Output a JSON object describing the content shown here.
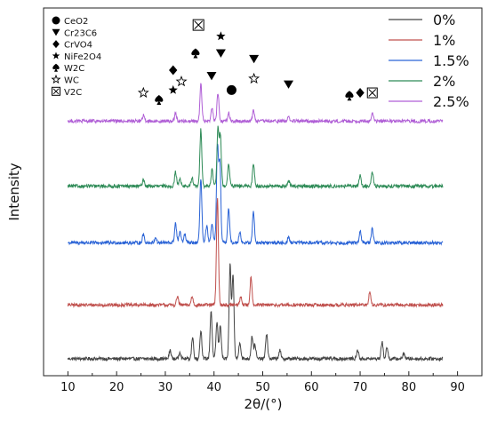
{
  "chart_data": {
    "type": "line",
    "title": "",
    "xlabel": "2θ/(°)",
    "ylabel": "Intensity",
    "xlim": [
      5,
      95
    ],
    "x_ticks": [
      10,
      20,
      30,
      40,
      50,
      60,
      70,
      80,
      90
    ],
    "grid": false,
    "legend_position": "top-right",
    "series": [
      {
        "name": "0%",
        "color": "#444444",
        "baseline": 0.06,
        "peaks": [
          [
            31,
            0.03
          ],
          [
            33,
            0.025
          ],
          [
            35.6,
            0.075
          ],
          [
            37.3,
            0.1
          ],
          [
            39.4,
            0.17
          ],
          [
            40.6,
            0.13
          ],
          [
            41.3,
            0.12
          ],
          [
            43.3,
            0.33
          ],
          [
            43.9,
            0.3
          ],
          [
            45.3,
            0.06
          ],
          [
            47.8,
            0.08
          ],
          [
            48.4,
            0.05
          ],
          [
            50.8,
            0.09
          ],
          [
            53.5,
            0.03
          ],
          [
            69.5,
            0.03
          ],
          [
            74.5,
            0.06
          ],
          [
            75.5,
            0.04
          ],
          [
            79,
            0.02
          ]
        ]
      },
      {
        "name": "1%",
        "color": "#c0504d",
        "baseline": 0.25,
        "peaks": [
          [
            32.5,
            0.03
          ],
          [
            35.5,
            0.03
          ],
          [
            40.7,
            0.38
          ],
          [
            45.5,
            0.03
          ],
          [
            47.6,
            0.1
          ],
          [
            72,
            0.05
          ]
        ]
      },
      {
        "name": "1.5%",
        "color": "#2a63d6",
        "baseline": 0.47,
        "peaks": [
          [
            25.5,
            0.03
          ],
          [
            28,
            0.02
          ],
          [
            32.1,
            0.07
          ],
          [
            33,
            0.04
          ],
          [
            34,
            0.03
          ],
          [
            37.3,
            0.23
          ],
          [
            38.5,
            0.06
          ],
          [
            39.6,
            0.07
          ],
          [
            40.7,
            0.34
          ],
          [
            41.2,
            0.28
          ],
          [
            43,
            0.12
          ],
          [
            45.3,
            0.04
          ],
          [
            48.1,
            0.11
          ],
          [
            55.3,
            0.02
          ],
          [
            70,
            0.04
          ],
          [
            72.5,
            0.05
          ]
        ]
      },
      {
        "name": "2%",
        "color": "#2e8b57",
        "baseline": 0.67,
        "peaks": [
          [
            25.5,
            0.025
          ],
          [
            32.1,
            0.05
          ],
          [
            33,
            0.03
          ],
          [
            35.5,
            0.03
          ],
          [
            37.3,
            0.2
          ],
          [
            39.6,
            0.06
          ],
          [
            40.8,
            0.2
          ],
          [
            41.3,
            0.18
          ],
          [
            43,
            0.08
          ],
          [
            48.1,
            0.08
          ],
          [
            55.3,
            0.02
          ],
          [
            70,
            0.04
          ],
          [
            72.5,
            0.05
          ]
        ]
      },
      {
        "name": "2.5%",
        "color": "#b05fd6",
        "baseline": 0.9,
        "peaks": [
          [
            25.5,
            0.02
          ],
          [
            32.1,
            0.03
          ],
          [
            37.3,
            0.13
          ],
          [
            39.6,
            0.05
          ],
          [
            40.8,
            0.1
          ],
          [
            43,
            0.03
          ],
          [
            48.1,
            0.04
          ],
          [
            55.3,
            0.015
          ],
          [
            72.5,
            0.03
          ]
        ]
      }
    ],
    "phase_legend": [
      {
        "symbol": "circle",
        "label": "CeO2"
      },
      {
        "symbol": "triangle-down",
        "label": "Cr23C6"
      },
      {
        "symbol": "diamond",
        "label": "CrVO4"
      },
      {
        "symbol": "star",
        "label": "NiFe2O4"
      },
      {
        "symbol": "spade",
        "label": "W2C"
      },
      {
        "symbol": "star-open",
        "label": "WC"
      },
      {
        "symbol": "boxed-x",
        "label": "V2C"
      }
    ],
    "phase_markers": [
      {
        "symbol": "star-open",
        "x": 25.5,
        "level": 1.0
      },
      {
        "symbol": "spade",
        "x": 28.7,
        "level": 0.975
      },
      {
        "symbol": "star",
        "x": 31.6,
        "level": 1.01
      },
      {
        "symbol": "diamond",
        "x": 31.6,
        "level": 1.08
      },
      {
        "symbol": "star-open",
        "x": 33.3,
        "level": 1.04
      },
      {
        "symbol": "spade",
        "x": 36.2,
        "level": 1.14
      },
      {
        "symbol": "boxed-x",
        "x": 36.8,
        "level": 1.24
      },
      {
        "symbol": "triangle-down",
        "x": 39.5,
        "level": 1.06
      },
      {
        "symbol": "triangle-down",
        "x": 41.4,
        "level": 1.14
      },
      {
        "symbol": "star",
        "x": 41.4,
        "level": 1.2
      },
      {
        "symbol": "circle",
        "x": 43.6,
        "level": 1.01
      },
      {
        "symbol": "star-open",
        "x": 48.2,
        "level": 1.05
      },
      {
        "symbol": "triangle-down",
        "x": 48.2,
        "level": 1.12
      },
      {
        "symbol": "triangle-down",
        "x": 55.3,
        "level": 1.03
      },
      {
        "symbol": "spade",
        "x": 67.8,
        "level": 0.99
      },
      {
        "symbol": "diamond",
        "x": 70.0,
        "level": 1.0
      },
      {
        "symbol": "boxed-x",
        "x": 72.5,
        "level": 1.0
      }
    ]
  }
}
